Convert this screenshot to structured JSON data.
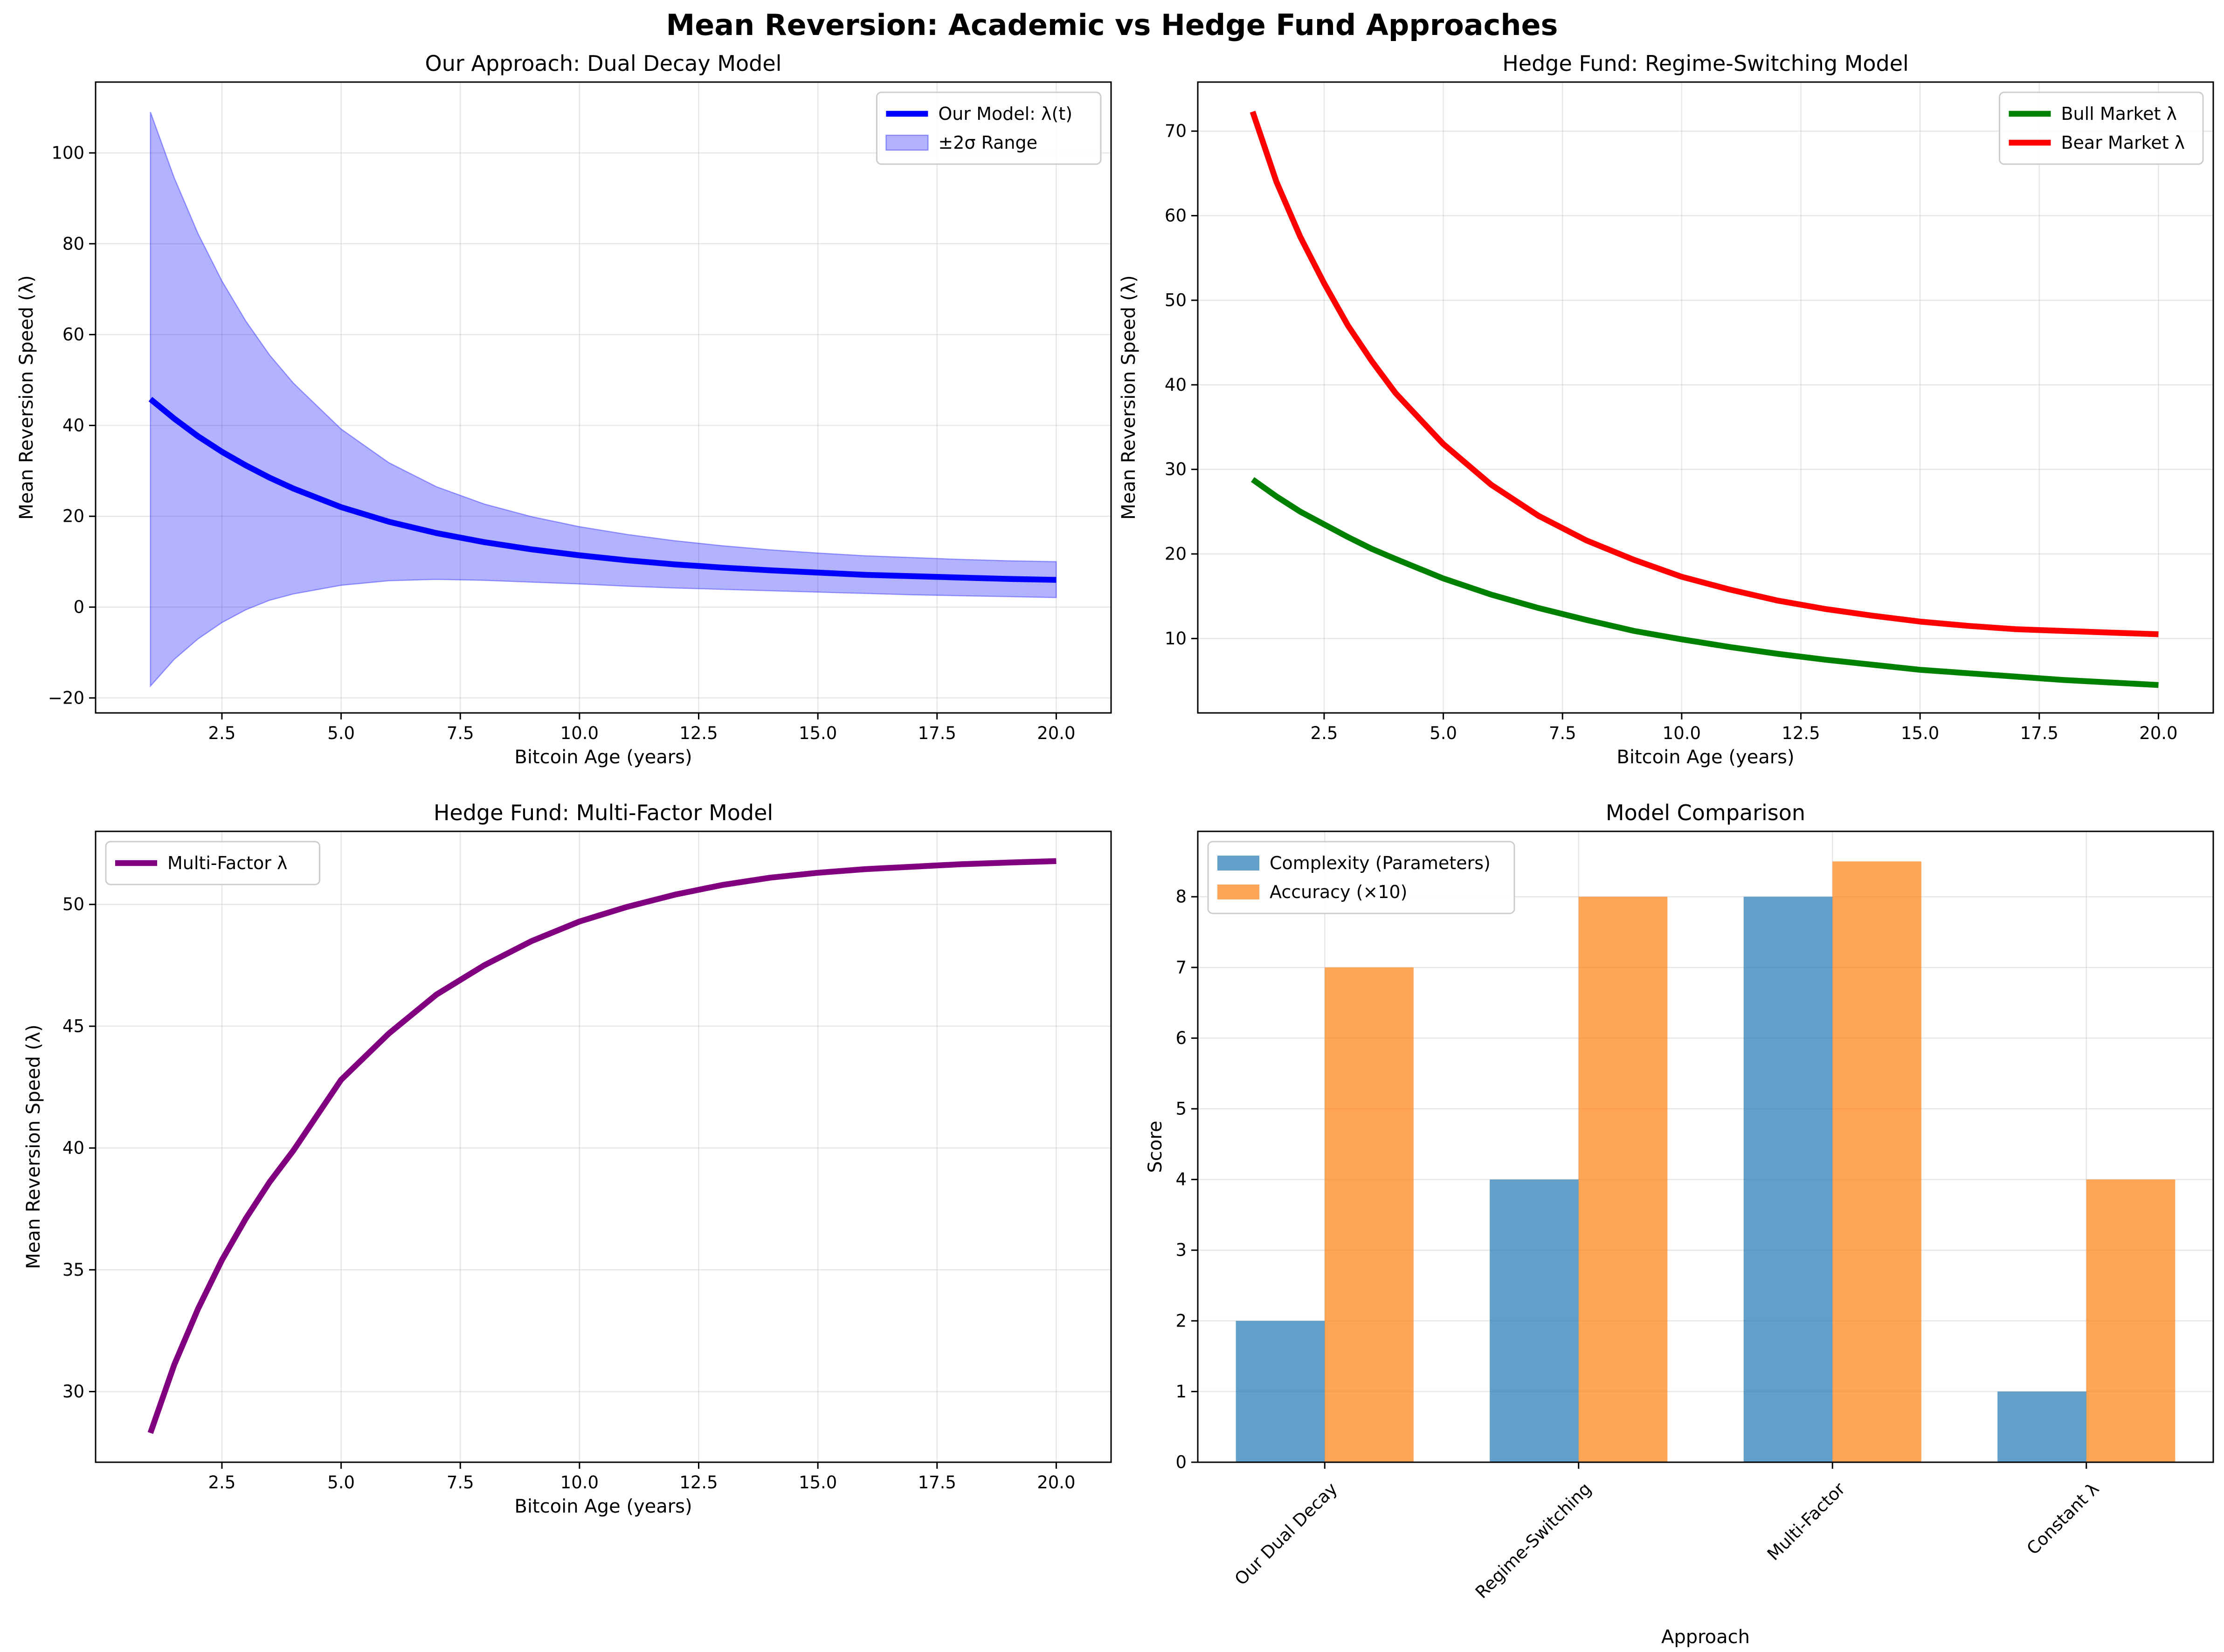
{
  "figure": {
    "suptitle": "Mean Reversion: Academic vs Hedge Fund Approaches"
  },
  "chart_data": [
    {
      "id": "p1",
      "type": "line",
      "title": "Our Approach: Dual Decay Model",
      "xlabel": "Bitcoin Age (years)",
      "ylabel": "Mean Reversion Speed (λ)",
      "xlim": [
        -0.15,
        21.15
      ],
      "ylim": [
        -23.3,
        115.6
      ],
      "xticks": [
        2.5,
        5.0,
        7.5,
        10.0,
        12.5,
        15.0,
        17.5,
        20.0
      ],
      "xtick_labels": [
        "2.5",
        "5.0",
        "7.5",
        "10.0",
        "12.5",
        "15.0",
        "17.5",
        "20.0"
      ],
      "yticks": [
        -20,
        0,
        20,
        40,
        60,
        80,
        100
      ],
      "ytick_labels": [
        "−20",
        "0",
        "20",
        "40",
        "60",
        "80",
        "100"
      ],
      "grid": true,
      "legend_position": "upper-right",
      "series": [
        {
          "name": "Our Model: λ(t)",
          "kind": "line",
          "color": "#0000ff",
          "x": [
            1,
            1.5,
            2,
            2.5,
            3,
            3.5,
            4,
            5,
            6,
            7,
            8,
            9,
            10,
            11,
            12,
            13,
            14,
            15,
            16,
            17,
            18,
            19,
            20
          ],
          "y": [
            45.8,
            41.5,
            37.6,
            34.2,
            31.2,
            28.5,
            26.1,
            22.0,
            18.8,
            16.3,
            14.3,
            12.7,
            11.4,
            10.3,
            9.4,
            8.7,
            8.1,
            7.6,
            7.1,
            6.8,
            6.5,
            6.2,
            6.0
          ]
        },
        {
          "name": "±2σ Range",
          "kind": "band",
          "color": "#0000ff",
          "x": [
            1,
            1.5,
            2,
            2.5,
            3,
            3.5,
            4,
            5,
            6,
            7,
            8,
            9,
            10,
            11,
            12,
            13,
            14,
            15,
            16,
            17,
            18,
            19,
            20
          ],
          "upper": [
            109.0,
            94.5,
            82.2,
            71.8,
            63.0,
            55.5,
            49.3,
            39.2,
            31.8,
            26.5,
            22.7,
            19.9,
            17.7,
            16.0,
            14.6,
            13.5,
            12.6,
            11.9,
            11.3,
            10.9,
            10.5,
            10.2,
            10.0
          ],
          "lower": [
            -17.4,
            -11.5,
            -7.0,
            -3.4,
            -0.6,
            1.5,
            2.9,
            4.8,
            5.8,
            6.1,
            5.9,
            5.5,
            5.1,
            4.6,
            4.2,
            3.9,
            3.6,
            3.3,
            3.0,
            2.7,
            2.5,
            2.3,
            2.1
          ]
        }
      ]
    },
    {
      "id": "p2",
      "type": "line",
      "title": "Hedge Fund: Regime-Switching Model",
      "xlabel": "Bitcoin Age (years)",
      "ylabel": "Mean Reversion Speed (λ)",
      "xlim": [
        -0.15,
        21.15
      ],
      "ylim": [
        1.2,
        75.8
      ],
      "xticks": [
        2.5,
        5.0,
        7.5,
        10.0,
        12.5,
        15.0,
        17.5,
        20.0
      ],
      "xtick_labels": [
        "2.5",
        "5.0",
        "7.5",
        "10.0",
        "12.5",
        "15.0",
        "17.5",
        "20.0"
      ],
      "yticks": [
        10,
        20,
        30,
        40,
        50,
        60,
        70
      ],
      "ytick_labels": [
        "10",
        "20",
        "30",
        "40",
        "50",
        "60",
        "70"
      ],
      "grid": true,
      "legend_position": "upper-right",
      "series": [
        {
          "name": "Bull Market λ",
          "kind": "line",
          "color": "#008000",
          "x": [
            1,
            1.5,
            2,
            2.5,
            3,
            3.5,
            4,
            5,
            6,
            7,
            8,
            9,
            10,
            11,
            12,
            13,
            14,
            15,
            16,
            17,
            18,
            19,
            20
          ],
          "y": [
            28.8,
            26.8,
            25.0,
            23.5,
            22.0,
            20.6,
            19.4,
            17.1,
            15.2,
            13.6,
            12.2,
            10.9,
            9.9,
            9.0,
            8.2,
            7.5,
            6.9,
            6.3,
            5.9,
            5.5,
            5.1,
            4.8,
            4.5
          ]
        },
        {
          "name": "Bear Market λ",
          "kind": "line",
          "color": "#ff0000",
          "x": [
            1,
            1.5,
            2,
            2.5,
            3,
            3.5,
            4,
            5,
            6,
            7,
            8,
            9,
            10,
            11,
            12,
            13,
            14,
            15,
            16,
            17,
            18,
            19,
            20
          ],
          "y": [
            72.3,
            64.0,
            57.5,
            52.0,
            47.0,
            42.8,
            39.0,
            33.0,
            28.2,
            24.5,
            21.6,
            19.3,
            17.3,
            15.8,
            14.5,
            13.5,
            12.7,
            12.0,
            11.5,
            11.1,
            10.9,
            10.7,
            10.5
          ]
        }
      ]
    },
    {
      "id": "p3",
      "type": "line",
      "title": "Hedge Fund: Multi-Factor Model",
      "xlabel": "Bitcoin Age (years)",
      "ylabel": "Mean Reversion Speed (λ)",
      "xlim": [
        -0.15,
        21.15
      ],
      "ylim": [
        27.1,
        53.0
      ],
      "xticks": [
        2.5,
        5.0,
        7.5,
        10.0,
        12.5,
        15.0,
        17.5,
        20.0
      ],
      "xtick_labels": [
        "2.5",
        "5.0",
        "7.5",
        "10.0",
        "12.5",
        "15.0",
        "17.5",
        "20.0"
      ],
      "yticks": [
        30,
        35,
        40,
        45,
        50
      ],
      "ytick_labels": [
        "30",
        "35",
        "40",
        "45",
        "50"
      ],
      "grid": true,
      "legend_position": "upper-left",
      "series": [
        {
          "name": "Multi-Factor λ",
          "kind": "line",
          "color": "#800080",
          "x": [
            1,
            1.5,
            2,
            2.5,
            3,
            3.5,
            4,
            5,
            6,
            7,
            8,
            9,
            10,
            11,
            12,
            13,
            14,
            15,
            16,
            17,
            18,
            19,
            20
          ],
          "y": [
            28.3,
            31.1,
            33.4,
            35.4,
            37.1,
            38.6,
            39.9,
            42.8,
            44.7,
            46.3,
            47.5,
            48.5,
            49.3,
            49.9,
            50.4,
            50.8,
            51.1,
            51.3,
            51.45,
            51.55,
            51.65,
            51.72,
            51.78
          ]
        }
      ]
    },
    {
      "id": "p4",
      "type": "bar",
      "title": "Model Comparison",
      "xlabel": "Approach",
      "ylabel": "Score",
      "categories": [
        "Our Dual Decay",
        "Regime-Switching",
        "Multi-Factor",
        "Constant λ"
      ],
      "ylim": [
        0,
        8.925
      ],
      "yticks": [
        0,
        1,
        2,
        3,
        4,
        5,
        6,
        7,
        8
      ],
      "ytick_labels": [
        "0",
        "1",
        "2",
        "3",
        "4",
        "5",
        "6",
        "7",
        "8"
      ],
      "grid": true,
      "legend_position": "upper-left",
      "series": [
        {
          "name": "Complexity (Parameters)",
          "color": "#1f77b4",
          "opacity": 0.7,
          "values": [
            2,
            4,
            8,
            1
          ]
        },
        {
          "name": "Accuracy (×10)",
          "color": "#ff7f0e",
          "opacity": 0.7,
          "values": [
            7,
            8,
            8.5,
            4
          ]
        }
      ]
    }
  ]
}
